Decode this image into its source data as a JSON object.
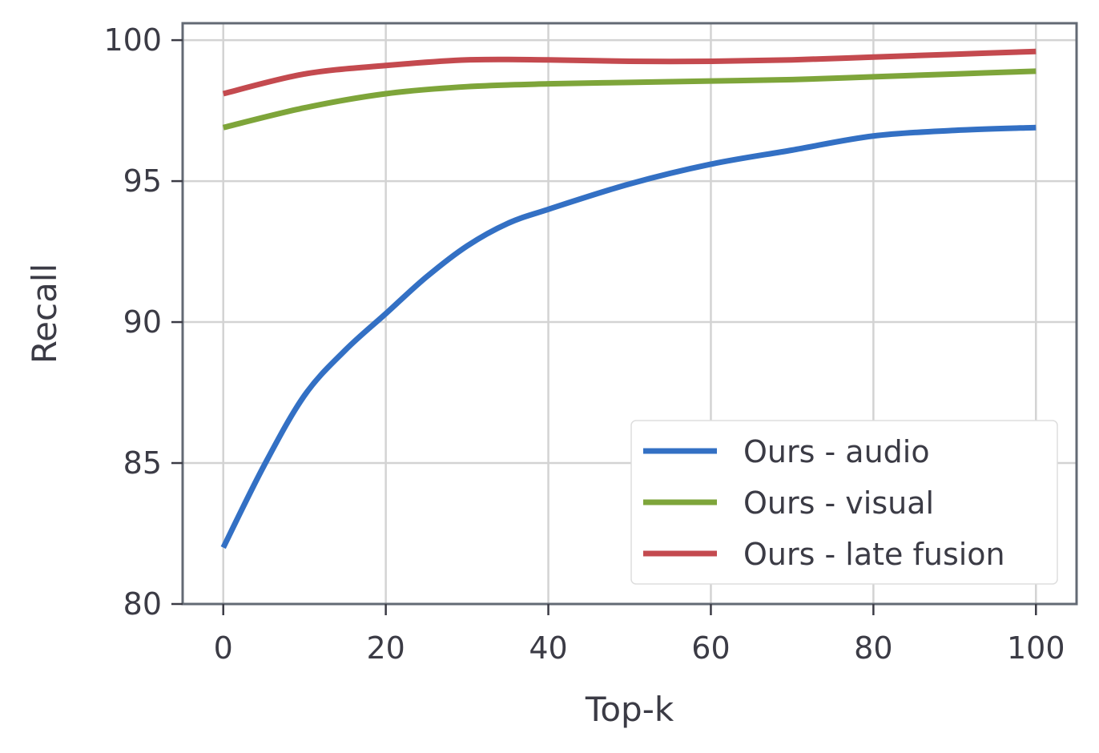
{
  "chart_data": {
    "type": "line",
    "title": "",
    "xlabel": "Top-k",
    "ylabel": "Recall",
    "xlim": [
      -5,
      105
    ],
    "ylim": [
      80,
      100.6
    ],
    "xticks": [
      0,
      20,
      40,
      60,
      80,
      100
    ],
    "yticks": [
      80,
      85,
      90,
      95,
      100
    ],
    "grid": true,
    "legend_position": "bottom-right",
    "series": [
      {
        "name": "Ours - audio",
        "color": "#3370c4",
        "x": [
          0,
          5,
          10,
          15,
          20,
          25,
          30,
          35,
          40,
          50,
          60,
          70,
          80,
          90,
          100
        ],
        "values": [
          82.0,
          84.9,
          87.4,
          89.0,
          90.3,
          91.6,
          92.7,
          93.5,
          94.0,
          94.9,
          95.6,
          96.1,
          96.6,
          96.8,
          96.9
        ]
      },
      {
        "name": "Ours - visual",
        "color": "#7ea53a",
        "x": [
          0,
          10,
          20,
          30,
          40,
          50,
          60,
          70,
          80,
          90,
          100
        ],
        "values": [
          96.9,
          97.6,
          98.1,
          98.35,
          98.45,
          98.5,
          98.55,
          98.6,
          98.7,
          98.8,
          98.9
        ]
      },
      {
        "name": "Ours - late fusion",
        "color": "#c44a4f",
        "x": [
          0,
          10,
          20,
          30,
          40,
          50,
          60,
          70,
          80,
          90,
          100
        ],
        "values": [
          98.1,
          98.8,
          99.1,
          99.3,
          99.3,
          99.25,
          99.25,
          99.3,
          99.4,
          99.5,
          99.6
        ]
      }
    ]
  }
}
